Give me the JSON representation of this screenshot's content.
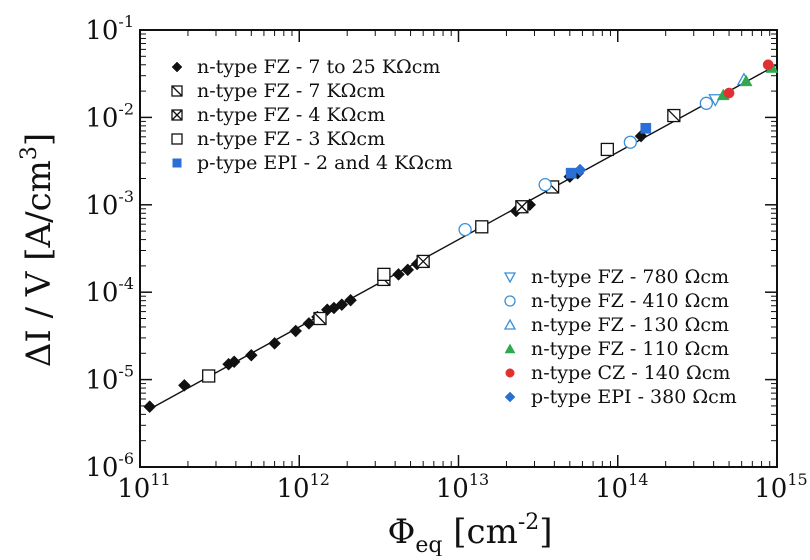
{
  "chart_data": {
    "type": "scatter",
    "xlabel": {
      "base": "Φ",
      "sub": "eq",
      "unit_open": " [cm",
      "unit_sup": "-2",
      "unit_close": "]"
    },
    "ylabel": {
      "base": "ΔI / V  [A/cm",
      "sup": "3",
      "close": "]"
    },
    "x_scale": "log",
    "y_scale": "log",
    "xlim": [
      100000000000.0,
      1000000000000000.0
    ],
    "ylim": [
      1e-06,
      0.1
    ],
    "x_ticks": [
      {
        "base": "10",
        "exp": "11"
      },
      {
        "base": "10",
        "exp": "12"
      },
      {
        "base": "10",
        "exp": "13"
      },
      {
        "base": "10",
        "exp": "14"
      },
      {
        "base": "10",
        "exp": "15"
      }
    ],
    "y_ticks": [
      {
        "base": "10",
        "exp": "-6"
      },
      {
        "base": "10",
        "exp": "-5"
      },
      {
        "base": "10",
        "exp": "-4"
      },
      {
        "base": "10",
        "exp": "-3"
      },
      {
        "base": "10",
        "exp": "-2"
      },
      {
        "base": "10",
        "exp": "-1"
      }
    ],
    "grid": false,
    "fit_line": {
      "x": [
        115000000000.0,
        1000000000000000.0
      ],
      "y": [
        4.6e-06,
        0.04
      ]
    },
    "legends": [
      {
        "placement": "top-left",
        "entries": [
          {
            "label": "n-type FZ - 7 to 25 KΩcm",
            "marker": "diamond-filled",
            "color": "#111111"
          },
          {
            "label": "n-type FZ - 7 KΩcm",
            "marker": "square-slash",
            "color": "#111111"
          },
          {
            "label": "n-type FZ - 4 KΩcm",
            "marker": "square-x",
            "color": "#111111"
          },
          {
            "label": "n-type FZ - 3 KΩcm",
            "marker": "square-open",
            "color": "#111111"
          },
          {
            "label": "p-type EPI - 2 and 4 KΩcm",
            "marker": "square-filled",
            "color": "#2a6fd6"
          }
        ]
      },
      {
        "placement": "bottom-right",
        "entries": [
          {
            "label": "n-type FZ - 780 Ωcm",
            "marker": "triangle-down-open",
            "color": "#3a8fd8"
          },
          {
            "label": "n-type FZ - 410 Ωcm",
            "marker": "circle-open",
            "color": "#3a8fd8"
          },
          {
            "label": "n-type FZ - 130 Ωcm",
            "marker": "triangle-up-open",
            "color": "#3a8fd8"
          },
          {
            "label": "n-type FZ - 110 Ωcm",
            "marker": "triangle-up-filled",
            "color": "#2fa84f"
          },
          {
            "label": "n-type CZ - 140 Ωcm",
            "marker": "circle-filled",
            "color": "#e03030"
          },
          {
            "label": "p-type EPI - 380 Ωcm",
            "marker": "diamond-filled",
            "color": "#2a6fd6"
          }
        ]
      }
    ],
    "series": [
      {
        "marker": "diamond-filled",
        "color": "#111111",
        "x": [
          115000000000.0,
          190000000000.0,
          360000000000.0,
          390000000000.0,
          500000000000.0,
          700000000000.0,
          950000000000.0,
          1150000000000.0,
          1300000000000.0,
          1500000000000.0,
          1650000000000.0,
          1850000000000.0,
          2100000000000.0,
          4200000000000.0,
          4800000000000.0,
          5500000000000.0,
          23000000000000.0,
          28000000000000.0,
          36000000000000.0,
          50000000000000.0,
          56000000000000.0,
          140000000000000.0
        ],
        "y": [
          4.9e-06,
          8.6e-06,
          1.5e-05,
          1.6e-05,
          1.9e-05,
          2.6e-05,
          3.6e-05,
          4.4e-05,
          5.2e-05,
          6.3e-05,
          6.6e-05,
          7.2e-05,
          8.1e-05,
          0.00016,
          0.00018,
          0.00021,
          0.00085,
          0.001,
          0.0016,
          0.0021,
          0.0023,
          0.0061
        ]
      },
      {
        "marker": "square-slash",
        "color": "#111111",
        "x": [
          1350000000000.0,
          3400000000000.0,
          39000000000000.0,
          225000000000000.0
        ],
        "y": [
          5e-05,
          0.00014,
          0.0016,
          0.0105
        ]
      },
      {
        "marker": "square-x",
        "color": "#111111",
        "x": [
          6000000000000.0,
          25000000000000.0
        ],
        "y": [
          0.000225,
          0.00095
        ]
      },
      {
        "marker": "square-open",
        "color": "#111111",
        "x": [
          270000000000.0,
          3400000000000.0,
          14000000000000.0,
          86000000000000.0
        ],
        "y": [
          1.1e-05,
          0.00016,
          0.00056,
          0.0043
        ]
      },
      {
        "marker": "square-filled",
        "color": "#2a6fd6",
        "x": [
          51000000000000.0,
          150000000000000.0
        ],
        "y": [
          0.0023,
          0.0075
        ]
      },
      {
        "marker": "triangle-down-open",
        "color": "#3a8fd8",
        "x": [
          410000000000000.0
        ],
        "y": [
          0.016
        ]
      },
      {
        "marker": "circle-open",
        "color": "#3a8fd8",
        "x": [
          11000000000000.0,
          35000000000000.0,
          120000000000000.0,
          360000000000000.0
        ],
        "y": [
          0.00052,
          0.0017,
          0.0052,
          0.0145
        ]
      },
      {
        "marker": "triangle-up-open",
        "color": "#3a8fd8",
        "x": [
          620000000000000.0
        ],
        "y": [
          0.027
        ]
      },
      {
        "marker": "triangle-up-filled",
        "color": "#2fa84f",
        "x": [
          460000000000000.0,
          640000000000000.0,
          930000000000000.0
        ],
        "y": [
          0.018,
          0.026,
          0.037
        ]
      },
      {
        "marker": "circle-filled",
        "color": "#e03030",
        "x": [
          500000000000000.0,
          880000000000000.0
        ],
        "y": [
          0.019,
          0.04
        ]
      },
      {
        "marker": "diamond-filled",
        "color": "#2a6fd6",
        "x": [
          58000000000000.0
        ],
        "y": [
          0.0025
        ]
      }
    ]
  }
}
